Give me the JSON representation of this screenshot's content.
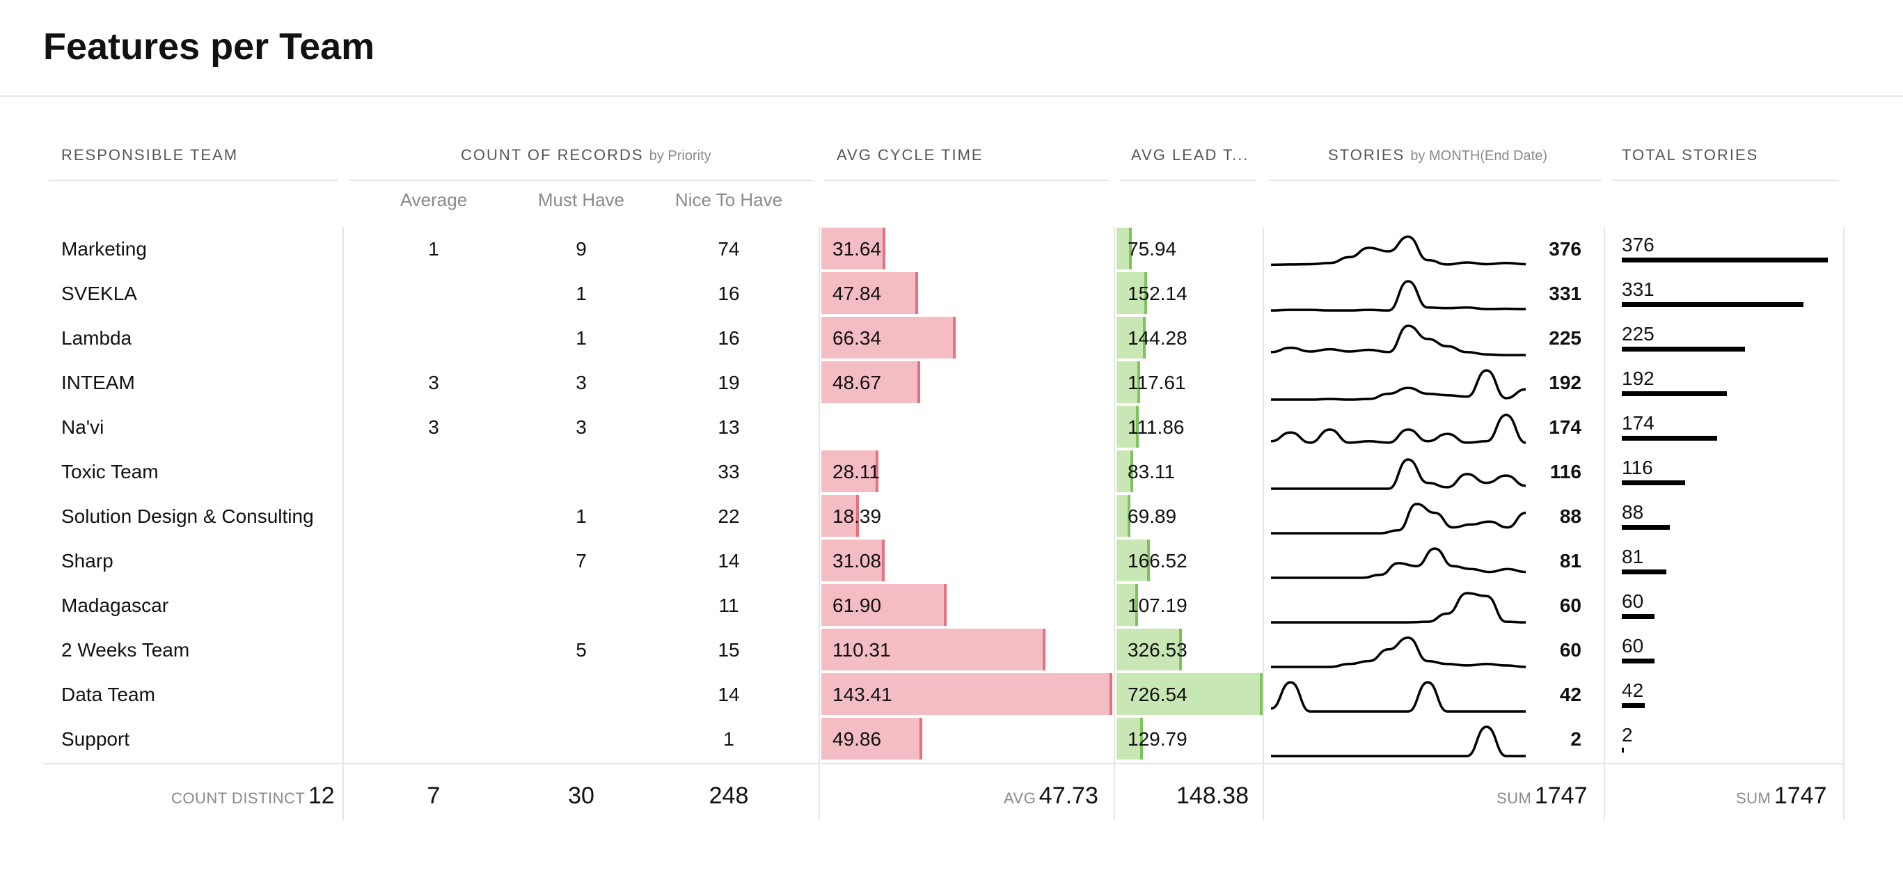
{
  "title": "Features per Team",
  "headers": {
    "team": "RESPONSIBLE TEAM",
    "count": "COUNT OF RECORDS",
    "count_sub": "by Priority",
    "cycle": "AVG CYCLE TIME",
    "lead": "AVG LEAD T...",
    "stories": "STORIES",
    "stories_sub": "by MONTH(End Date)",
    "total": "TOTAL STORIES"
  },
  "subheaders": {
    "average": "Average",
    "must": "Must Have",
    "nice": "Nice To Have"
  },
  "colors": {
    "cycle_fill": "#f4bcc3",
    "cycle_edge": "#e8707c",
    "lead_fill": "#c9e7b4",
    "lead_edge": "#7cc35a",
    "total_bar": "#000000"
  },
  "chart_data": {
    "type": "table",
    "columns": [
      "RESPONSIBLE TEAM",
      "Average",
      "Must Have",
      "Nice To Have",
      "AVG CYCLE TIME",
      "AVG LEAD T...",
      "STORIES",
      "TOTAL STORIES"
    ],
    "rows": [
      {
        "team": "Marketing",
        "average": "1",
        "must": "9",
        "nice": "74",
        "cycle": "31.64",
        "cycle_v": 31.64,
        "lead": "75.94",
        "lead_v": 75.94,
        "stories": "376",
        "total": "376",
        "total_v": 376
      },
      {
        "team": "SVEKLA",
        "average": "",
        "must": "1",
        "nice": "16",
        "cycle": "47.84",
        "cycle_v": 47.84,
        "lead": "152.14",
        "lead_v": 152.14,
        "stories": "331",
        "total": "331",
        "total_v": 331
      },
      {
        "team": "Lambda",
        "average": "",
        "must": "1",
        "nice": "16",
        "cycle": "66.34",
        "cycle_v": 66.34,
        "lead": "144.28",
        "lead_v": 144.28,
        "stories": "225",
        "total": "225",
        "total_v": 225
      },
      {
        "team": "INTEAM",
        "average": "3",
        "must": "3",
        "nice": "19",
        "cycle": "48.67",
        "cycle_v": 48.67,
        "lead": "117.61",
        "lead_v": 117.61,
        "stories": "192",
        "total": "192",
        "total_v": 192
      },
      {
        "team": "Na'vi",
        "average": "3",
        "must": "3",
        "nice": "13",
        "cycle": "",
        "cycle_v": null,
        "lead": "111.86",
        "lead_v": 111.86,
        "stories": "174",
        "total": "174",
        "total_v": 174
      },
      {
        "team": "Toxic Team",
        "average": "",
        "must": "",
        "nice": "33",
        "cycle": "28.11",
        "cycle_v": 28.11,
        "lead": "83.11",
        "lead_v": 83.11,
        "stories": "116",
        "total": "116",
        "total_v": 116
      },
      {
        "team": "Solution Design & Consulting",
        "average": "",
        "must": "1",
        "nice": "22",
        "cycle": "18.39",
        "cycle_v": 18.39,
        "lead": "69.89",
        "lead_v": 69.89,
        "stories": "88",
        "total": "88",
        "total_v": 88
      },
      {
        "team": "Sharp",
        "average": "",
        "must": "7",
        "nice": "14",
        "cycle": "31.08",
        "cycle_v": 31.08,
        "lead": "166.52",
        "lead_v": 166.52,
        "stories": "81",
        "total": "81",
        "total_v": 81
      },
      {
        "team": "Madagascar",
        "average": "",
        "must": "",
        "nice": "11",
        "cycle": "61.90",
        "cycle_v": 61.9,
        "lead": "107.19",
        "lead_v": 107.19,
        "stories": "60",
        "total": "60",
        "total_v": 60
      },
      {
        "team": "2 Weeks Team",
        "average": "",
        "must": "5",
        "nice": "15",
        "cycle": "110.31",
        "cycle_v": 110.31,
        "lead": "326.53",
        "lead_v": 326.53,
        "stories": "60",
        "total": "60",
        "total_v": 60
      },
      {
        "team": "Data Team",
        "average": "",
        "must": "",
        "nice": "14",
        "cycle": "143.41",
        "cycle_v": 143.41,
        "lead": "726.54",
        "lead_v": 726.54,
        "stories": "42",
        "total": "42",
        "total_v": 42
      },
      {
        "team": "Support",
        "average": "",
        "must": "",
        "nice": "1",
        "cycle": "49.86",
        "cycle_v": 49.86,
        "lead": "129.79",
        "lead_v": 129.79,
        "stories": "2",
        "total": "2",
        "total_v": 2
      }
    ],
    "sparklines": [
      [
        0.04,
        0.05,
        0.06,
        0.1,
        0.3,
        0.62,
        0.5,
        1.0,
        0.2,
        0.05,
        0.12,
        0.06,
        0.1,
        0.06
      ],
      [
        0.0,
        0.02,
        0.02,
        0.0,
        0.0,
        0.02,
        0.0,
        1.0,
        0.1,
        0.08,
        0.1,
        0.05,
        0.06,
        0.05
      ],
      [
        0.1,
        0.25,
        0.12,
        0.2,
        0.12,
        0.18,
        0.1,
        1.0,
        0.55,
        0.3,
        0.1,
        0.02,
        0.0,
        0.0
      ],
      [
        0.0,
        0.0,
        0.0,
        0.02,
        0.0,
        0.02,
        0.2,
        0.4,
        0.2,
        0.15,
        0.1,
        1.0,
        0.05,
        0.35
      ],
      [
        0.1,
        0.4,
        0.05,
        0.5,
        0.05,
        0.1,
        0.05,
        0.5,
        0.1,
        0.35,
        0.05,
        0.1,
        1.0,
        0.05
      ],
      [
        0.0,
        0.0,
        0.0,
        0.0,
        0.0,
        0.0,
        0.0,
        1.0,
        0.2,
        0.05,
        0.5,
        0.2,
        0.45,
        0.1
      ],
      [
        0.0,
        0.0,
        0.0,
        0.0,
        0.0,
        0.0,
        0.0,
        0.1,
        1.0,
        0.7,
        0.2,
        0.3,
        0.4,
        0.2,
        0.7
      ],
      [
        0.0,
        0.0,
        0.0,
        0.0,
        0.0,
        0.0,
        0.1,
        0.5,
        0.4,
        1.0,
        0.4,
        0.3,
        0.2,
        0.3,
        0.2
      ],
      [
        0.0,
        0.0,
        0.0,
        0.0,
        0.0,
        0.0,
        0.0,
        0.0,
        0.02,
        0.3,
        1.0,
        0.9,
        0.02,
        0.0
      ],
      [
        0.0,
        0.0,
        0.0,
        0.0,
        0.1,
        0.2,
        0.6,
        1.0,
        0.2,
        0.1,
        0.05,
        0.1,
        0.05,
        0.0
      ],
      [
        0.1,
        1.0,
        0.0,
        0.0,
        0.0,
        0.0,
        0.0,
        0.0,
        1.0,
        0.0,
        0.0,
        0.0,
        0.0,
        0.0
      ],
      [
        0.0,
        0.0,
        0.0,
        0.0,
        0.0,
        0.0,
        0.0,
        0.0,
        0.0,
        0.0,
        0.0,
        1.0,
        0.0,
        0.0
      ]
    ],
    "footer": {
      "count_distinct_label": "COUNT DISTINCT",
      "count_distinct": "12",
      "average_total": "7",
      "must_total": "30",
      "nice_total": "248",
      "avg_label": "AVG",
      "avg_cycle": "47.73",
      "avg_lead": "148.38",
      "sum_label": "SUM",
      "stories_sum": "1747",
      "total_sum": "1747"
    },
    "cycle_max": 143.41,
    "lead_max": 726.54,
    "total_max": 376
  }
}
